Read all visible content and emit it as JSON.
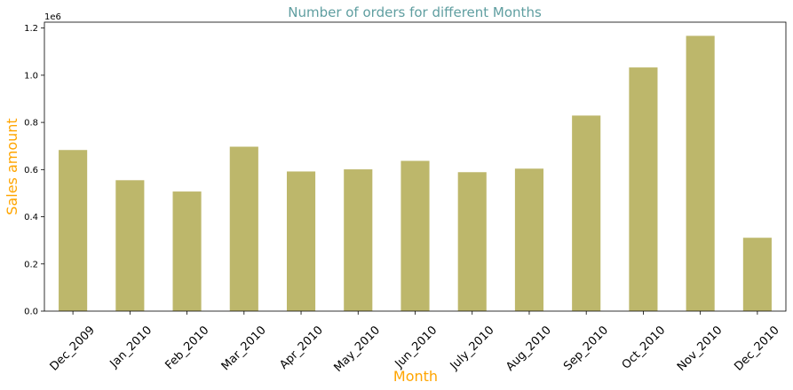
{
  "chart_data": {
    "type": "bar",
    "title": "Number of orders for different Months",
    "xlabel": "Month",
    "ylabel": "Sales amount",
    "y_offset_label": "1e6",
    "categories": [
      "Dec_2009",
      "Jan_2010",
      "Feb_2010",
      "Mar_2010",
      "Apr_2010",
      "May_2010",
      "Jun_2010",
      "July_2010",
      "Aug_2010",
      "Sep_2010",
      "Oct_2010",
      "Nov_2010",
      "Dec_2010"
    ],
    "values": [
      683000,
      555000,
      507000,
      697000,
      592000,
      601000,
      637000,
      589000,
      604000,
      829000,
      1033000,
      1167000,
      311000
    ],
    "ylim": [
      0,
      1225000
    ],
    "yticks": [
      0.0,
      0.2,
      0.4,
      0.6,
      0.8,
      1.0,
      1.2
    ],
    "ytick_labels": [
      "0.0",
      "0.2",
      "0.4",
      "0.6",
      "0.8",
      "1.0",
      "1.2"
    ],
    "grid": false,
    "colors": {
      "bar": "#bdb76b",
      "title": "#5f9ea0",
      "axis_label": "#ffa500"
    }
  }
}
